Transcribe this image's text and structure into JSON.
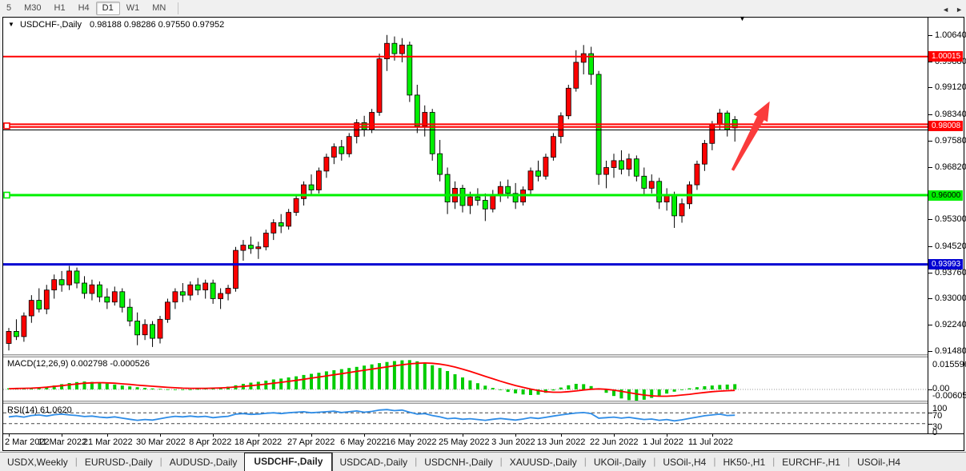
{
  "toolbar": {
    "timeframes": [
      {
        "label": "5",
        "active": false
      },
      {
        "label": "M30",
        "active": false
      },
      {
        "label": "H1",
        "active": false
      },
      {
        "label": "H4",
        "active": false
      },
      {
        "label": "D1",
        "active": true
      },
      {
        "label": "W1",
        "active": false
      },
      {
        "label": "MN",
        "active": false
      }
    ]
  },
  "window_header": {
    "symbol": "USDCHF-,Daily",
    "ohlc": "0.98188 0.98286 0.97550 0.97952"
  },
  "icons": {
    "dropdown": "▼",
    "chart_shift": "▼",
    "tab_scroll_left": "◄",
    "tab_scroll_right": "►"
  },
  "chart_data": {
    "type": "candlestick",
    "symbol": "USDCHF",
    "timeframe": "Daily",
    "last_bar": {
      "open": 0.98188,
      "high": 0.98286,
      "low": 0.9755,
      "close": 0.97952
    },
    "price_axis_ticks": [
      "1.00640",
      "0.99880",
      "0.99120",
      "0.98340",
      "0.97580",
      "0.96820",
      "0.95300",
      "0.94520",
      "0.93760",
      "0.93000",
      "0.92240",
      "0.91480"
    ],
    "price_range": {
      "top": 1.01146,
      "bottom": 0.91388
    },
    "colors": {
      "up": "#ff0000",
      "down": "#00f000",
      "wick": "#000000",
      "level_red": "#ff0000",
      "level_green": "#00f000",
      "level_blue": "#0000d2",
      "macd_histogram": "#00cc00",
      "macd_signal": "#ff0000",
      "rsi_line": "#2e8ce6",
      "arrow": "#fa3b3b"
    },
    "levels": [
      {
        "price": 1.00015,
        "color": "#ff0000",
        "width": 2,
        "badge": "1.00015",
        "badge_bg": "#ff0000",
        "badge_fg": "#ffffff",
        "handle": false
      },
      {
        "price": 0.98055,
        "color": "#ff0000",
        "width": 2,
        "badge": null,
        "handle": false
      },
      {
        "price": 0.97975,
        "color": "#ff0000",
        "width": 2,
        "badge": "0.98008",
        "badge_at": 0.98008,
        "badge_bg": "#ff0000",
        "badge_fg": "#ffffff",
        "handle": true
      },
      {
        "price": 0.9789,
        "color": "#000000",
        "width": 1,
        "badge": null,
        "handle": false
      },
      {
        "price": 0.96,
        "color": "#00f000",
        "width": 3,
        "badge": "0.96000",
        "badge_bg": "#00f000",
        "badge_fg": "#000000",
        "handle": true
      },
      {
        "price": 0.93993,
        "color": "#0000d2",
        "width": 3,
        "badge": "0.93993",
        "badge_bg": "#0000d2",
        "badge_fg": "#ffffff",
        "handle": false
      }
    ],
    "candles": [
      [
        0.917,
        0.9215,
        0.915,
        0.9205
      ],
      [
        0.9205,
        0.924,
        0.918,
        0.919
      ],
      [
        0.919,
        0.926,
        0.9175,
        0.925
      ],
      [
        0.925,
        0.931,
        0.923,
        0.9295
      ],
      [
        0.9295,
        0.933,
        0.926,
        0.927
      ],
      [
        0.927,
        0.934,
        0.9255,
        0.9325
      ],
      [
        0.9325,
        0.937,
        0.93,
        0.9355
      ],
      [
        0.9355,
        0.938,
        0.932,
        0.934
      ],
      [
        0.934,
        0.9395,
        0.9325,
        0.938
      ],
      [
        0.938,
        0.939,
        0.933,
        0.9345
      ],
      [
        0.9345,
        0.9365,
        0.93,
        0.9315
      ],
      [
        0.9315,
        0.9355,
        0.9295,
        0.934
      ],
      [
        0.934,
        0.935,
        0.929,
        0.9305
      ],
      [
        0.9305,
        0.933,
        0.927,
        0.929
      ],
      [
        0.929,
        0.9335,
        0.928,
        0.932
      ],
      [
        0.932,
        0.933,
        0.926,
        0.9275
      ],
      [
        0.9275,
        0.93,
        0.922,
        0.9235
      ],
      [
        0.9235,
        0.926,
        0.9165,
        0.9195
      ],
      [
        0.9195,
        0.924,
        0.918,
        0.9225
      ],
      [
        0.9225,
        0.9235,
        0.916,
        0.9185
      ],
      [
        0.9185,
        0.925,
        0.917,
        0.924
      ],
      [
        0.924,
        0.93,
        0.923,
        0.929
      ],
      [
        0.929,
        0.933,
        0.927,
        0.932
      ],
      [
        0.932,
        0.9345,
        0.929,
        0.931
      ],
      [
        0.931,
        0.935,
        0.9295,
        0.934
      ],
      [
        0.934,
        0.936,
        0.931,
        0.9325
      ],
      [
        0.9325,
        0.9355,
        0.93,
        0.9345
      ],
      [
        0.9345,
        0.9355,
        0.9285,
        0.93
      ],
      [
        0.93,
        0.933,
        0.927,
        0.9315
      ],
      [
        0.9315,
        0.934,
        0.9295,
        0.933
      ],
      [
        0.933,
        0.945,
        0.932,
        0.944
      ],
      [
        0.944,
        0.947,
        0.941,
        0.9455
      ],
      [
        0.9455,
        0.948,
        0.943,
        0.9445
      ],
      [
        0.9445,
        0.9465,
        0.9415,
        0.945
      ],
      [
        0.945,
        0.95,
        0.944,
        0.949
      ],
      [
        0.949,
        0.953,
        0.947,
        0.952
      ],
      [
        0.952,
        0.9545,
        0.949,
        0.951
      ],
      [
        0.951,
        0.956,
        0.95,
        0.955
      ],
      [
        0.955,
        0.96,
        0.954,
        0.959
      ],
      [
        0.959,
        0.964,
        0.957,
        0.963
      ],
      [
        0.963,
        0.966,
        0.96,
        0.9615
      ],
      [
        0.9615,
        0.968,
        0.9605,
        0.967
      ],
      [
        0.967,
        0.972,
        0.965,
        0.971
      ],
      [
        0.971,
        0.975,
        0.969,
        0.974
      ],
      [
        0.974,
        0.976,
        0.97,
        0.972
      ],
      [
        0.972,
        0.978,
        0.971,
        0.977
      ],
      [
        0.977,
        0.982,
        0.975,
        0.981
      ],
      [
        0.981,
        0.983,
        0.977,
        0.979
      ],
      [
        0.979,
        0.985,
        0.978,
        0.984
      ],
      [
        0.984,
        1.001,
        0.983,
        0.9995
      ],
      [
        0.9995,
        1.0064,
        0.996,
        1.004
      ],
      [
        1.004,
        1.006,
        0.999,
        1.001
      ],
      [
        1.001,
        1.0055,
        0.9985,
        1.0035
      ],
      [
        1.0035,
        1.0045,
        0.987,
        0.989
      ],
      [
        0.989,
        0.992,
        0.978,
        0.98
      ],
      [
        0.98,
        0.986,
        0.977,
        0.984
      ],
      [
        0.984,
        0.985,
        0.97,
        0.972
      ],
      [
        0.972,
        0.976,
        0.964,
        0.966
      ],
      [
        0.966,
        0.968,
        0.9545,
        0.958
      ],
      [
        0.958,
        0.964,
        0.956,
        0.962
      ],
      [
        0.962,
        0.963,
        0.955,
        0.957
      ],
      [
        0.957,
        0.961,
        0.9545,
        0.9595
      ],
      [
        0.9595,
        0.962,
        0.957,
        0.9585
      ],
      [
        0.9585,
        0.9605,
        0.9525,
        0.956
      ],
      [
        0.956,
        0.9615,
        0.955,
        0.96
      ],
      [
        0.96,
        0.964,
        0.958,
        0.9625
      ],
      [
        0.9625,
        0.9645,
        0.959,
        0.9605
      ],
      [
        0.9605,
        0.9635,
        0.956,
        0.958
      ],
      [
        0.958,
        0.9625,
        0.957,
        0.9615
      ],
      [
        0.9615,
        0.968,
        0.96,
        0.967
      ],
      [
        0.967,
        0.97,
        0.964,
        0.9655
      ],
      [
        0.9655,
        0.972,
        0.9645,
        0.971
      ],
      [
        0.971,
        0.978,
        0.97,
        0.977
      ],
      [
        0.977,
        0.984,
        0.975,
        0.983
      ],
      [
        0.983,
        0.992,
        0.982,
        0.991
      ],
      [
        0.991,
        1.002,
        0.99,
        0.9985
      ],
      [
        0.9985,
        1.0035,
        0.995,
        1.001
      ],
      [
        1.001,
        1.003,
        0.992,
        0.995
      ],
      [
        0.995,
        0.996,
        0.963,
        0.966
      ],
      [
        0.966,
        0.97,
        0.962,
        0.968
      ],
      [
        0.968,
        0.972,
        0.965,
        0.97
      ],
      [
        0.97,
        0.973,
        0.966,
        0.9675
      ],
      [
        0.9675,
        0.972,
        0.9655,
        0.9705
      ],
      [
        0.9705,
        0.9715,
        0.964,
        0.9655
      ],
      [
        0.9655,
        0.968,
        0.96,
        0.962
      ],
      [
        0.962,
        0.966,
        0.9605,
        0.964
      ],
      [
        0.964,
        0.965,
        0.956,
        0.958
      ],
      [
        0.958,
        0.962,
        0.9555,
        0.96
      ],
      [
        0.96,
        0.961,
        0.9505,
        0.954
      ],
      [
        0.954,
        0.959,
        0.952,
        0.9575
      ],
      [
        0.9575,
        0.964,
        0.956,
        0.963
      ],
      [
        0.963,
        0.97,
        0.9615,
        0.969
      ],
      [
        0.969,
        0.976,
        0.967,
        0.975
      ],
      [
        0.975,
        0.9815,
        0.973,
        0.9805
      ],
      [
        0.9805,
        0.985,
        0.979,
        0.9838
      ],
      [
        0.9838,
        0.9845,
        0.977,
        0.979
      ],
      [
        0.9819,
        0.9829,
        0.9755,
        0.9795
      ]
    ],
    "dates": [
      {
        "label": "2 Mar 2022",
        "bar": 0
      },
      {
        "label": "11 Mar 2022",
        "bar": 7
      },
      {
        "label": "21 Mar 2022",
        "bar": 13
      },
      {
        "label": "30 Mar 2022",
        "bar": 20
      },
      {
        "label": "8 Apr 2022",
        "bar": 27
      },
      {
        "label": "18 Apr 2022",
        "bar": 33
      },
      {
        "label": "27 Apr 2022",
        "bar": 40
      },
      {
        "label": "6 May 2022",
        "bar": 47
      },
      {
        "label": "16 May 2022",
        "bar": 53
      },
      {
        "label": "25 May 2022",
        "bar": 60
      },
      {
        "label": "3 Jun 2022",
        "bar": 67
      },
      {
        "label": "13 Jun 2022",
        "bar": 73
      },
      {
        "label": "22 Jun 2022",
        "bar": 80
      },
      {
        "label": "1 Jul 2022",
        "bar": 87
      },
      {
        "label": "11 Jul 2022",
        "bar": 93
      }
    ],
    "macd": {
      "label": "MACD(12,26,9) 0.002798 -0.000526",
      "current_macd": 0.002798,
      "current_signal": -0.000526,
      "axis_labels": [
        "0.015596",
        "0.00",
        "-0.006055"
      ],
      "range": {
        "max": 0.015596,
        "min": -0.006055
      },
      "histogram": [
        0.0006,
        0.0005,
        0.0007,
        0.0009,
        0.0011,
        0.0015,
        0.0021,
        0.0028,
        0.0034,
        0.0039,
        0.0042,
        0.004,
        0.0036,
        0.0031,
        0.0026,
        0.0021,
        0.0016,
        0.0012,
        0.0008,
        0.0005,
        0.0003,
        0.0001,
        -0.0002,
        -0.0003,
        -0.0002,
        0.0002,
        0.0005,
        0.0008,
        0.0011,
        0.0015,
        0.0022,
        0.003,
        0.0036,
        0.0041,
        0.0047,
        0.0053,
        0.0058,
        0.0064,
        0.007,
        0.0077,
        0.0083,
        0.0089,
        0.0096,
        0.0102,
        0.0108,
        0.0114,
        0.012,
        0.0127,
        0.0133,
        0.014,
        0.0146,
        0.0151,
        0.0155,
        0.0156,
        0.015,
        0.0141,
        0.0129,
        0.0114,
        0.0098,
        0.0081,
        0.0064,
        0.0048,
        0.0033,
        0.002,
        0.0008,
        -0.0003,
        -0.0013,
        -0.0021,
        -0.0027,
        -0.003,
        -0.0028,
        -0.0018,
        -0.0005,
        0.001,
        0.0022,
        0.003,
        0.0028,
        0.0018,
        0.0002,
        -0.0018,
        -0.0035,
        -0.0048,
        -0.0057,
        -0.0061,
        -0.0055,
        -0.0045,
        -0.0033,
        -0.0022,
        -0.0012,
        -0.0002,
        0.0006,
        0.0012,
        0.0017,
        0.0021,
        0.0024,
        0.0026,
        0.0028
      ],
      "signal": [
        0.0004,
        0.0005,
        0.0006,
        0.0007,
        0.0009,
        0.0012,
        0.0016,
        0.002,
        0.0025,
        0.0029,
        0.0033,
        0.0035,
        0.0036,
        0.0035,
        0.0033,
        0.003,
        0.0027,
        0.0023,
        0.002,
        0.0017,
        0.0014,
        0.0011,
        0.0009,
        0.0007,
        0.0006,
        0.0006,
        0.0006,
        0.0007,
        0.0008,
        0.001,
        0.0013,
        0.0016,
        0.002,
        0.0024,
        0.0028,
        0.0033,
        0.0038,
        0.0043,
        0.0048,
        0.0054,
        0.006,
        0.0066,
        0.0072,
        0.0078,
        0.0084,
        0.009,
        0.0096,
        0.0102,
        0.0108,
        0.0114,
        0.012,
        0.0126,
        0.0131,
        0.0136,
        0.0139,
        0.0141,
        0.0139,
        0.0135,
        0.0128,
        0.0119,
        0.0108,
        0.0096,
        0.0083,
        0.007,
        0.0057,
        0.0044,
        0.0032,
        0.0021,
        0.0011,
        0.0002,
        -0.0006,
        -0.0012,
        -0.0015,
        -0.0015,
        -0.0012,
        -0.0008,
        -0.0003,
        0.0001,
        0.0003,
        0.0001,
        -0.0004,
        -0.001,
        -0.0017,
        -0.0024,
        -0.003,
        -0.0034,
        -0.0036,
        -0.0036,
        -0.0034,
        -0.003,
        -0.0026,
        -0.0021,
        -0.0016,
        -0.0012,
        -0.0009,
        -0.0007,
        -0.0005
      ]
    },
    "rsi": {
      "label": "RSI(14) 61.0620",
      "current": 61.062,
      "axis_labels": [
        "100",
        "70",
        "30",
        "0"
      ],
      "range": [
        0,
        100
      ],
      "guide_levels": [
        70,
        30
      ],
      "values": [
        55,
        58,
        54,
        60,
        62,
        58,
        63,
        65,
        62,
        60,
        56,
        58,
        54,
        52,
        55,
        50,
        46,
        42,
        45,
        43,
        48,
        53,
        57,
        55,
        58,
        55,
        57,
        52,
        55,
        57,
        65,
        67,
        64,
        65,
        68,
        70,
        67,
        70,
        72,
        74,
        70,
        72,
        74,
        76,
        71,
        74,
        77,
        72,
        75,
        80,
        82,
        78,
        80,
        72,
        65,
        67,
        60,
        55,
        48,
        50,
        46,
        48,
        45,
        42,
        46,
        49,
        46,
        43,
        47,
        52,
        49,
        53,
        58,
        62,
        66,
        69,
        71,
        67,
        50,
        52,
        54,
        50,
        53,
        49,
        45,
        47,
        42,
        45,
        40,
        44,
        49,
        54,
        59,
        62,
        65,
        60,
        61
      ]
    },
    "annotation_arrow": {
      "from": {
        "bar": 95.7,
        "price": 0.9672
      },
      "to": {
        "bar": 100.6,
        "price": 0.9872
      }
    }
  },
  "tabs": {
    "items": [
      "USDX,Weekly",
      "EURUSD-,Daily",
      "AUDUSD-,Daily",
      "USDCHF-,Daily",
      "USDCAD-,Daily",
      "USDCNH-,Daily",
      "XAUUSD-,Daily",
      "UKOil-,Daily",
      "USOil-,H4",
      "HK50-,H1",
      "EURCHF-,H1",
      "USOil-,H4"
    ],
    "active_index": 3
  }
}
